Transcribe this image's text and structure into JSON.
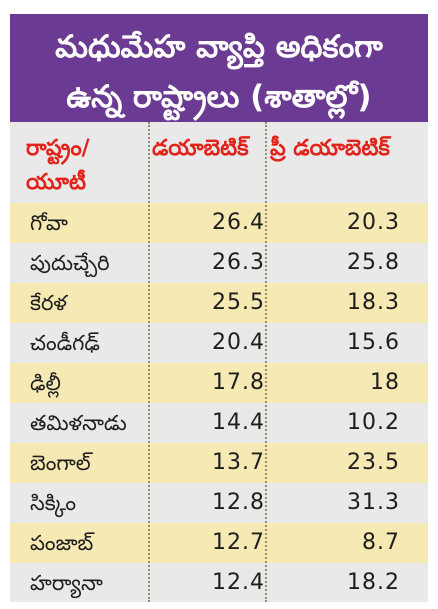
{
  "title": {
    "line1": "మధుమేహ వ్యాప్తి అధికంగా",
    "line2": "ఉన్న రాష్ట్రాలు (శాతాల్లో)"
  },
  "headers": {
    "state_line1": "రాష్ట్రం/",
    "state_line2": "యూటీ",
    "diabetic": "డయాబెటిక్",
    "prediabetic": "ప్రీ డయాబెటిక్"
  },
  "rows": [
    {
      "name": "గోవా",
      "diabetic": "26.4",
      "prediabetic": "20.3"
    },
    {
      "name": "పుదుచ్చేరి",
      "diabetic": "26.3",
      "prediabetic": "25.8"
    },
    {
      "name": "కేరళ",
      "diabetic": "25.5",
      "prediabetic": "18.3"
    },
    {
      "name": "చండీగఢ్",
      "diabetic": "20.4",
      "prediabetic": "15.6"
    },
    {
      "name": "ఢిల్లీ",
      "diabetic": "17.8",
      "prediabetic": "18"
    },
    {
      "name": "తమిళనాడు",
      "diabetic": "14.4",
      "prediabetic": "10.2"
    },
    {
      "name": "బెంగాల్",
      "diabetic": "13.7",
      "prediabetic": "23.5"
    },
    {
      "name": "సిక్కిం",
      "diabetic": "12.8",
      "prediabetic": "31.3"
    },
    {
      "name": "పంజాబ్",
      "diabetic": "12.7",
      "prediabetic": "8.7"
    },
    {
      "name": "హర్యానా",
      "diabetic": "12.4",
      "prediabetic": "18.2"
    }
  ],
  "colors": {
    "title_bg": "#6b3a92",
    "header_text": "#e2231a",
    "shade_row": "#f6e9b4",
    "card_bg": "#e9e9ea"
  }
}
